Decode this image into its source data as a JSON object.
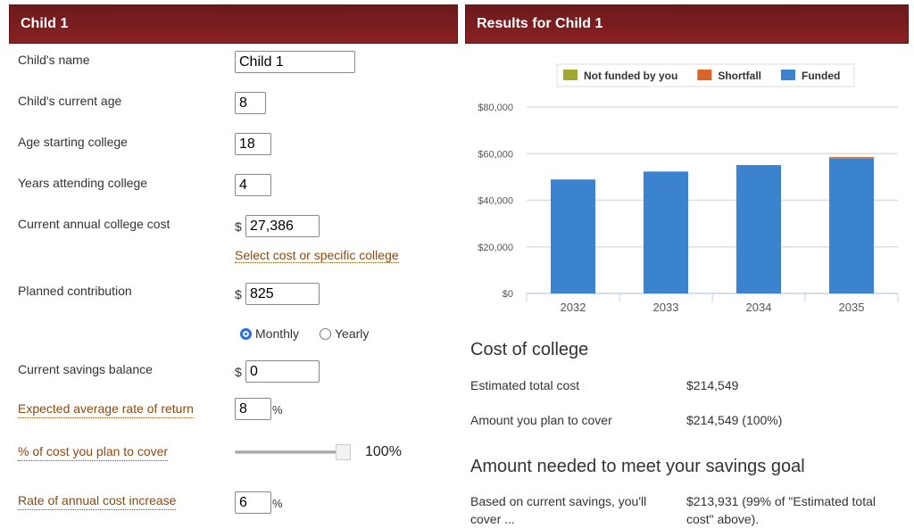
{
  "left": {
    "title": "Child 1",
    "fields": {
      "name": {
        "label": "Child's name",
        "value": "Child 1"
      },
      "age": {
        "label": "Child's current age",
        "value": "8"
      },
      "start_age": {
        "label": "Age starting college",
        "value": "18"
      },
      "years": {
        "label": "Years attending college",
        "value": "4"
      },
      "cost": {
        "label": "Current annual college cost",
        "prefix": "$",
        "value": "27,386",
        "link": "Select cost or specific college"
      },
      "contribution": {
        "label": "Planned contribution",
        "prefix": "$",
        "value": "825",
        "frequency_options": [
          "Monthly",
          "Yearly"
        ],
        "frequency_selected": "Monthly"
      },
      "savings": {
        "label": "Current savings balance",
        "prefix": "$",
        "value": "0"
      },
      "return": {
        "label": "Expected average rate of return",
        "value": "8",
        "suffix": "%"
      },
      "cover": {
        "label": "% of cost you plan to cover",
        "value": 100,
        "display": "100%"
      },
      "increase": {
        "label": "Rate of annual cost increase",
        "value": "6",
        "suffix": "%"
      }
    }
  },
  "right": {
    "title": "Results for Child 1",
    "cost_heading": "Cost of college",
    "estimated_label": "Estimated total cost",
    "estimated_value": "$214,549",
    "cover_label": "Amount you plan to cover",
    "cover_value": "$214,549 (100%)",
    "goal_heading": "Amount needed to meet your savings goal",
    "based_label": "Based on current savings, you'll cover ...",
    "based_value": "$213,931 (99% of \"Estimated total cost\" above)."
  },
  "chart_data": {
    "type": "bar",
    "stacked": true,
    "categories": [
      "2032",
      "2033",
      "2034",
      "2035"
    ],
    "series": [
      {
        "name": "Not funded by you",
        "color": "#a3a832",
        "values": [
          0,
          0,
          0,
          0
        ]
      },
      {
        "name": "Shortfall",
        "color": "#d9652b",
        "values": [
          0,
          0,
          0,
          618
        ]
      },
      {
        "name": "Funded",
        "color": "#3b82cf",
        "values": [
          48900,
          52300,
          55100,
          57900
        ]
      }
    ],
    "ylim": [
      0,
      80000
    ],
    "yticks": [
      "$0",
      "$20,000",
      "$40,000",
      "$60,000",
      "$80,000"
    ],
    "grid": true,
    "legend": "top"
  }
}
